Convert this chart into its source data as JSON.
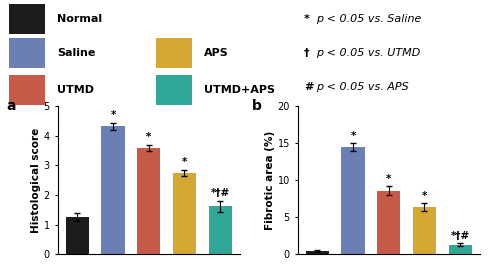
{
  "groups": [
    "Normal",
    "Saline",
    "UTMD",
    "APS",
    "UTMD+APS"
  ],
  "colors": [
    "#1c1c1c",
    "#6b7fb5",
    "#c85a4a",
    "#d4a832",
    "#30a898"
  ],
  "hist_values": [
    1.25,
    4.32,
    3.6,
    2.75,
    1.62
  ],
  "hist_errors": [
    0.13,
    0.12,
    0.1,
    0.1,
    0.18
  ],
  "hist_annotations": [
    "",
    "*",
    "*",
    "*",
    "*†#"
  ],
  "fibro_values": [
    0.45,
    14.5,
    8.6,
    6.4,
    1.3
  ],
  "fibro_errors": [
    0.12,
    0.55,
    0.65,
    0.55,
    0.22
  ],
  "fibro_annotations": [
    "",
    "*",
    "*",
    "*",
    "*†#"
  ],
  "hist_ylabel": "Histological score",
  "fibro_ylabel": "Fibrotic area (%)",
  "hist_ylim": [
    0,
    5
  ],
  "fibro_ylim": [
    0,
    20
  ],
  "hist_yticks": [
    0,
    1,
    2,
    3,
    4,
    5
  ],
  "fibro_yticks": [
    0,
    5,
    10,
    15,
    20
  ],
  "panel_a_label": "a",
  "panel_b_label": "b",
  "legend_items": [
    {
      "label": "Normal",
      "color": "#1c1c1c",
      "col": 0,
      "row": 0
    },
    {
      "label": "Saline",
      "color": "#6b7fb5",
      "col": 0,
      "row": 1
    },
    {
      "label": "UTMD",
      "color": "#c85a4a",
      "col": 0,
      "row": 2
    },
    {
      "label": "APS",
      "color": "#d4a832",
      "col": 1,
      "row": 1
    },
    {
      "label": "UTMD+APS",
      "color": "#30a898",
      "col": 1,
      "row": 2
    }
  ],
  "ann_lines": [
    "*p < 0.05 vs. Saline",
    "†p < 0.05 vs. UTMD",
    "#p < 0.05 vs. APS"
  ]
}
